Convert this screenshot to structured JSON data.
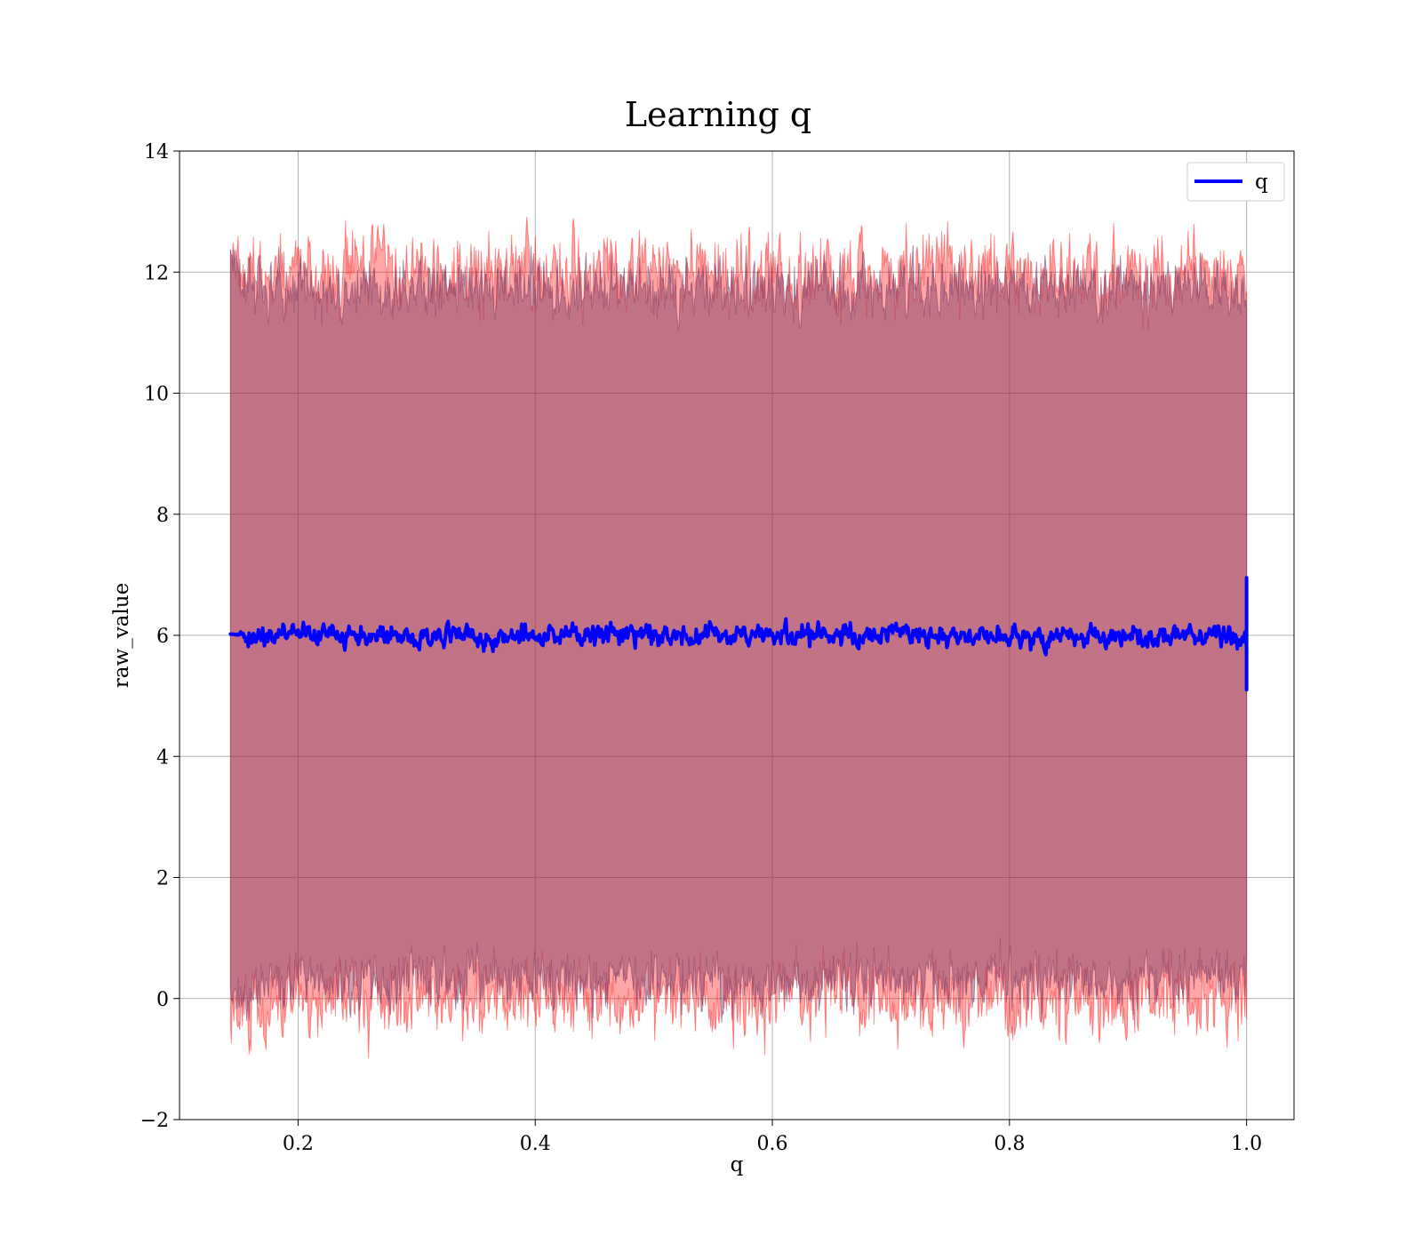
{
  "chart_data": {
    "type": "line",
    "title": "Learning q",
    "xlabel": "q",
    "ylabel": "raw_value",
    "xlim": [
      0.1,
      1.04
    ],
    "ylim": [
      -2,
      14
    ],
    "x_ticks": [
      0.2,
      0.4,
      0.6,
      0.8,
      1.0
    ],
    "x_tick_labels": [
      "0.2",
      "0.4",
      "0.6",
      "0.8",
      "1.0"
    ],
    "y_ticks": [
      -2,
      0,
      2,
      4,
      6,
      8,
      10,
      12,
      14
    ],
    "y_tick_labels": [
      "−2",
      "0",
      "2",
      "4",
      "6",
      "8",
      "10",
      "12",
      "14"
    ],
    "grid": true,
    "legend_position": "top-right",
    "series": [
      {
        "name": "q",
        "color": "#0000ff",
        "x_range": [
          0.143,
          1.0
        ],
        "mean_value": 6.0,
        "min_value": 5.1,
        "max_value": 6.95,
        "start_value": 6.02,
        "end_value": 6.95
      }
    ],
    "bands": [
      {
        "kind": "wide-red",
        "color": "#ff0000",
        "alpha": 0.35,
        "upper_mean": 12.0,
        "lower_mean": 0.0,
        "spread": 0.9
      },
      {
        "kind": "narrow-purple",
        "color": "#7a3660",
        "alpha": 0.45,
        "upper_mean": 11.75,
        "lower_mean": 0.3,
        "spread": 0.7
      }
    ]
  }
}
